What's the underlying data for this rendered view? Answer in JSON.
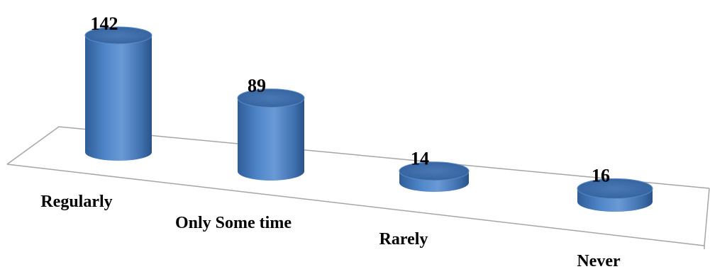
{
  "chart_data": {
    "type": "bar",
    "style": "3d-cylinder",
    "categories": [
      "Regularly",
      "Only Some time",
      "Rarely",
      "Never"
    ],
    "values": [
      142,
      89,
      14,
      16
    ],
    "data_labels": [
      "142",
      "89",
      "14",
      "16"
    ],
    "title": "",
    "xlabel": "",
    "ylabel": "",
    "grid": false,
    "legend": "none",
    "colors": {
      "bar": "#4a7ebf",
      "bar_dark": "#2c5a94",
      "bar_light": "#6f9fda",
      "top": "#3d6ba8",
      "floor": "#a6a6a6"
    }
  }
}
